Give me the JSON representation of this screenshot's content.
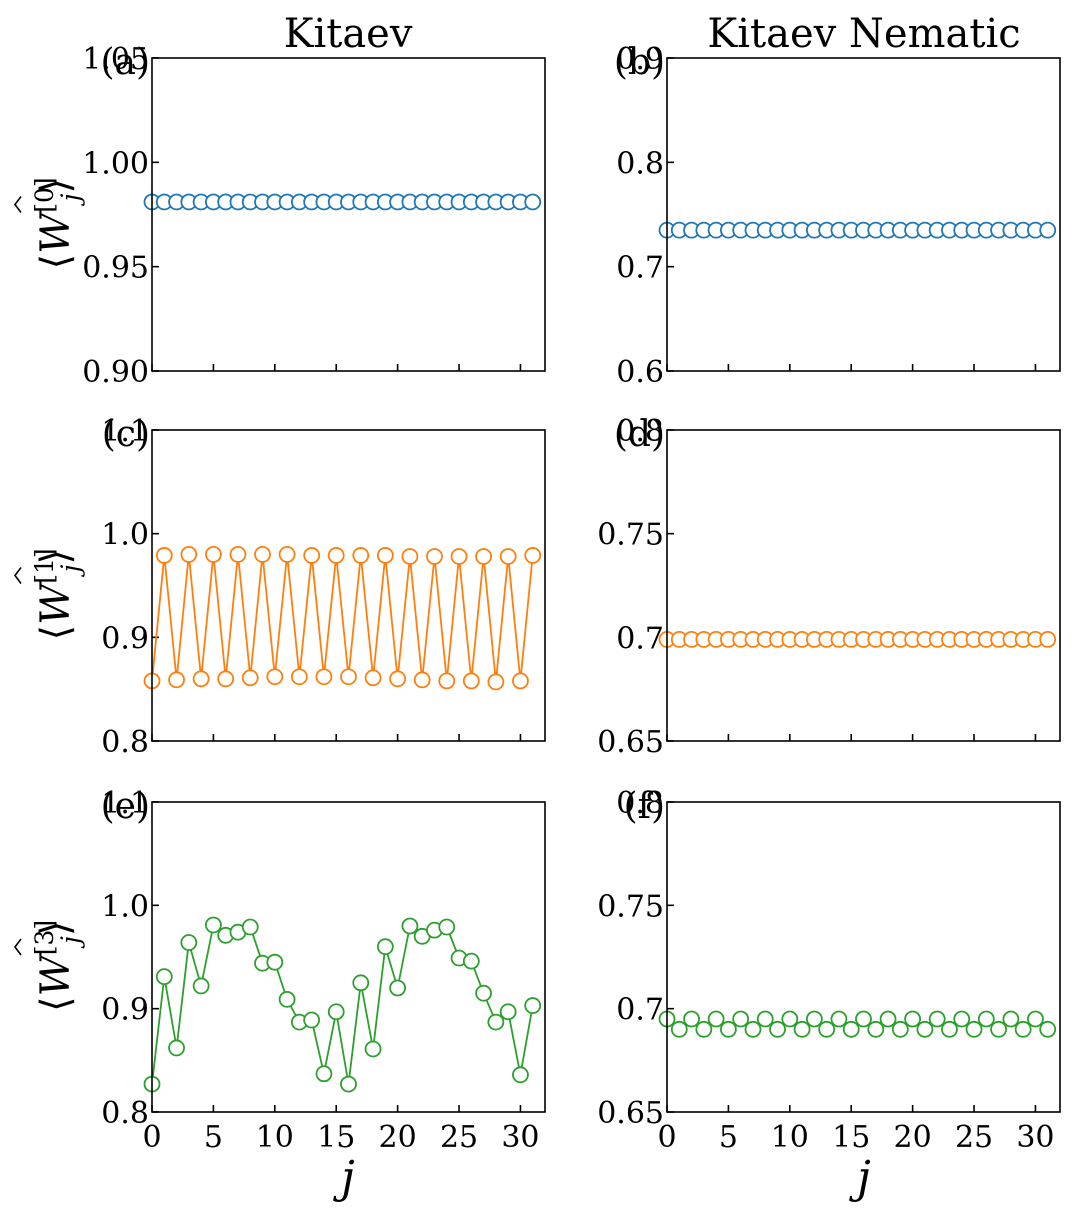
{
  "figure": {
    "col_titles": [
      "Kitaev",
      "Kitaev Nematic"
    ],
    "xlabel": "j"
  },
  "chart_data": [
    {
      "id": "a",
      "panel_label": "(a)",
      "type": "scatter",
      "connected": false,
      "color": "#1f77b4",
      "ylabel_superscript": "[0]",
      "xlim": [
        0,
        32
      ],
      "ylim": [
        0.9,
        1.05
      ],
      "yticks": [
        0.9,
        0.95,
        1.0,
        1.05
      ],
      "ytick_labels": [
        "0.90",
        "0.95",
        "1.00",
        "1.05"
      ],
      "xticks": [
        0,
        5,
        10,
        15,
        20,
        25,
        30
      ],
      "xtick_labels": [],
      "x": [
        0,
        1,
        2,
        3,
        4,
        5,
        6,
        7,
        8,
        9,
        10,
        11,
        12,
        13,
        14,
        15,
        16,
        17,
        18,
        19,
        20,
        21,
        22,
        23,
        24,
        25,
        26,
        27,
        28,
        29,
        30,
        31
      ],
      "y": [
        0.981,
        0.981,
        0.981,
        0.981,
        0.981,
        0.981,
        0.981,
        0.981,
        0.981,
        0.981,
        0.981,
        0.981,
        0.981,
        0.981,
        0.981,
        0.981,
        0.981,
        0.981,
        0.981,
        0.981,
        0.981,
        0.981,
        0.981,
        0.981,
        0.981,
        0.981,
        0.981,
        0.981,
        0.981,
        0.981,
        0.981,
        0.981
      ]
    },
    {
      "id": "b",
      "panel_label": "(b)",
      "type": "scatter",
      "connected": false,
      "color": "#1f77b4",
      "ylabel_superscript": "",
      "xlim": [
        0,
        32
      ],
      "ylim": [
        0.6,
        0.9
      ],
      "yticks": [
        0.6,
        0.7,
        0.8,
        0.9
      ],
      "ytick_labels": [
        "0.6",
        "0.7",
        "0.8",
        "0.9"
      ],
      "xticks": [
        0,
        5,
        10,
        15,
        20,
        25,
        30
      ],
      "xtick_labels": [],
      "x": [
        0,
        1,
        2,
        3,
        4,
        5,
        6,
        7,
        8,
        9,
        10,
        11,
        12,
        13,
        14,
        15,
        16,
        17,
        18,
        19,
        20,
        21,
        22,
        23,
        24,
        25,
        26,
        27,
        28,
        29,
        30,
        31
      ],
      "y": [
        0.735,
        0.735,
        0.735,
        0.735,
        0.735,
        0.735,
        0.735,
        0.735,
        0.735,
        0.735,
        0.735,
        0.735,
        0.735,
        0.735,
        0.735,
        0.735,
        0.735,
        0.735,
        0.735,
        0.735,
        0.735,
        0.735,
        0.735,
        0.735,
        0.735,
        0.735,
        0.735,
        0.735,
        0.735,
        0.735,
        0.735,
        0.735
      ]
    },
    {
      "id": "c",
      "panel_label": "(c)",
      "type": "line",
      "connected": true,
      "color": "#ff7f0e",
      "ylabel_superscript": "[1]",
      "xlim": [
        0,
        32
      ],
      "ylim": [
        0.8,
        1.1
      ],
      "yticks": [
        0.8,
        0.9,
        1.0,
        1.1
      ],
      "ytick_labels": [
        "0.8",
        "0.9",
        "1.0",
        "1.1"
      ],
      "xticks": [
        0,
        5,
        10,
        15,
        20,
        25,
        30
      ],
      "xtick_labels": [],
      "x": [
        0,
        1,
        2,
        3,
        4,
        5,
        6,
        7,
        8,
        9,
        10,
        11,
        12,
        13,
        14,
        15,
        16,
        17,
        18,
        19,
        20,
        21,
        22,
        23,
        24,
        25,
        26,
        27,
        28,
        29,
        30,
        31
      ],
      "y": [
        0.858,
        0.979,
        0.859,
        0.98,
        0.86,
        0.98,
        0.86,
        0.98,
        0.861,
        0.98,
        0.862,
        0.98,
        0.862,
        0.979,
        0.862,
        0.979,
        0.862,
        0.979,
        0.861,
        0.979,
        0.86,
        0.978,
        0.859,
        0.978,
        0.858,
        0.978,
        0.858,
        0.978,
        0.857,
        0.978,
        0.858,
        0.979
      ]
    },
    {
      "id": "d",
      "panel_label": "(d)",
      "type": "scatter",
      "connected": false,
      "color": "#ff7f0e",
      "ylabel_superscript": "",
      "xlim": [
        0,
        32
      ],
      "ylim": [
        0.65,
        0.8
      ],
      "yticks": [
        0.65,
        0.7,
        0.75,
        0.8
      ],
      "ytick_labels": [
        "0.65",
        "0.7",
        "0.75",
        "0.8"
      ],
      "xticks": [
        0,
        5,
        10,
        15,
        20,
        25,
        30
      ],
      "xtick_labels": [],
      "x": [
        0,
        1,
        2,
        3,
        4,
        5,
        6,
        7,
        8,
        9,
        10,
        11,
        12,
        13,
        14,
        15,
        16,
        17,
        18,
        19,
        20,
        21,
        22,
        23,
        24,
        25,
        26,
        27,
        28,
        29,
        30,
        31
      ],
      "y": [
        0.699,
        0.699,
        0.699,
        0.699,
        0.699,
        0.699,
        0.699,
        0.699,
        0.699,
        0.699,
        0.699,
        0.699,
        0.699,
        0.699,
        0.699,
        0.699,
        0.699,
        0.699,
        0.699,
        0.699,
        0.699,
        0.699,
        0.699,
        0.699,
        0.699,
        0.699,
        0.699,
        0.699,
        0.699,
        0.699,
        0.699,
        0.699
      ]
    },
    {
      "id": "e",
      "panel_label": "(e)",
      "type": "line",
      "connected": true,
      "color": "#2ca02c",
      "ylabel_superscript": "[3]",
      "xlim": [
        0,
        32
      ],
      "ylim": [
        0.8,
        1.1
      ],
      "yticks": [
        0.8,
        0.9,
        1.0,
        1.1
      ],
      "ytick_labels": [
        "0.8",
        "0.9",
        "1.0",
        "1.1"
      ],
      "xticks": [
        0,
        5,
        10,
        15,
        20,
        25,
        30
      ],
      "xtick_labels": [
        "0",
        "5",
        "10",
        "15",
        "20",
        "25",
        "30"
      ],
      "x": [
        0,
        1,
        2,
        3,
        4,
        5,
        6,
        7,
        8,
        9,
        10,
        11,
        12,
        13,
        14,
        15,
        16,
        17,
        18,
        19,
        20,
        21,
        22,
        23,
        24,
        25,
        26,
        27,
        28,
        29,
        30,
        31
      ],
      "y": [
        0.827,
        0.931,
        0.862,
        0.964,
        0.922,
        0.981,
        0.971,
        0.974,
        0.979,
        0.944,
        0.945,
        0.909,
        0.887,
        0.889,
        0.837,
        0.897,
        0.827,
        0.925,
        0.861,
        0.96,
        0.92,
        0.98,
        0.97,
        0.976,
        0.979,
        0.949,
        0.946,
        0.915,
        0.887,
        0.897,
        0.836,
        0.903
      ]
    },
    {
      "id": "f",
      "panel_label": "(f)",
      "type": "line",
      "connected": true,
      "color": "#2ca02c",
      "ylabel_superscript": "",
      "xlim": [
        0,
        32
      ],
      "ylim": [
        0.65,
        0.8
      ],
      "yticks": [
        0.65,
        0.7,
        0.75,
        0.8
      ],
      "ytick_labels": [
        "0.65",
        "0.7",
        "0.75",
        "0.8"
      ],
      "xticks": [
        0,
        5,
        10,
        15,
        20,
        25,
        30
      ],
      "xtick_labels": [
        "0",
        "5",
        "10",
        "15",
        "20",
        "25",
        "30"
      ],
      "x": [
        0,
        1,
        2,
        3,
        4,
        5,
        6,
        7,
        8,
        9,
        10,
        11,
        12,
        13,
        14,
        15,
        16,
        17,
        18,
        19,
        20,
        21,
        22,
        23,
        24,
        25,
        26,
        27,
        28,
        29,
        30,
        31
      ],
      "y": [
        0.695,
        0.69,
        0.695,
        0.69,
        0.695,
        0.69,
        0.695,
        0.69,
        0.695,
        0.69,
        0.695,
        0.69,
        0.695,
        0.69,
        0.695,
        0.69,
        0.695,
        0.69,
        0.695,
        0.69,
        0.695,
        0.69,
        0.695,
        0.69,
        0.695,
        0.69,
        0.695,
        0.69,
        0.695,
        0.69,
        0.695,
        0.69
      ]
    }
  ]
}
